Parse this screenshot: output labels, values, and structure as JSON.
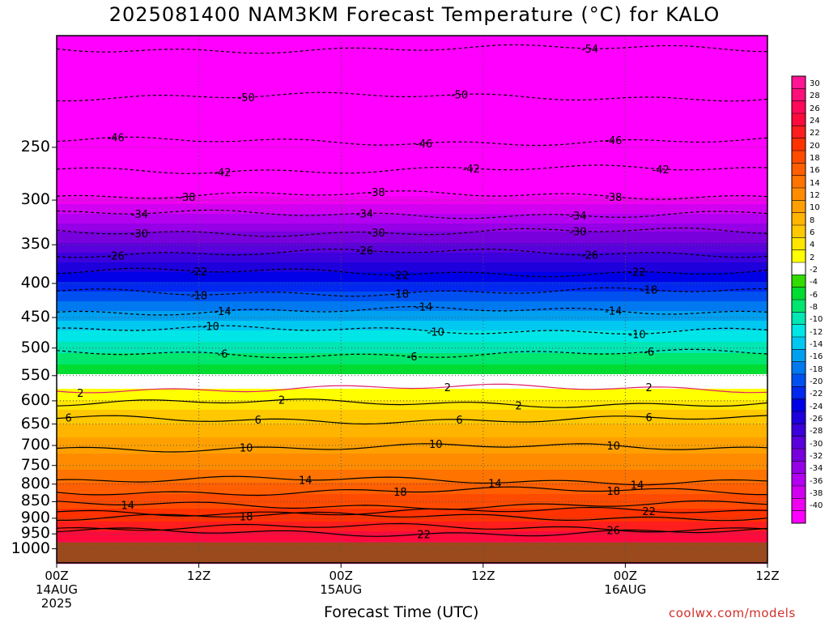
{
  "chart_data": {
    "type": "heatmap",
    "title": "2025081400 NAM3KM Forecast Temperature (°C) for KALO",
    "xlabel": "Forecast Time (UTC)",
    "ylabel": "",
    "x_range_hours": [
      0,
      60
    ],
    "y_scale": "log-pressure",
    "y_range_hpa": [
      1050,
      170
    ],
    "y_ticks": [
      250,
      300,
      350,
      400,
      450,
      500,
      550,
      600,
      650,
      700,
      750,
      800,
      850,
      900,
      950,
      1000
    ],
    "x_ticks": [
      {
        "hour": 0,
        "lines": [
          "00Z",
          "14AUG",
          "2025"
        ]
      },
      {
        "hour": 12,
        "lines": [
          "12Z"
        ]
      },
      {
        "hour": 24,
        "lines": [
          "00Z",
          "15AUG"
        ]
      },
      {
        "hour": 36,
        "lines": [
          "12Z"
        ]
      },
      {
        "hour": 48,
        "lines": [
          "00Z",
          "16AUG"
        ]
      },
      {
        "hour": 60,
        "lines": [
          "12Z"
        ]
      }
    ],
    "grid": true,
    "surface_pressure_hpa": 978,
    "temperature_profile": [
      {
        "p": 178,
        "t": -54
      },
      {
        "p": 210,
        "t": -50
      },
      {
        "p": 245,
        "t": -46
      },
      {
        "p": 270,
        "t": -42
      },
      {
        "p": 295,
        "t": -38
      },
      {
        "p": 315,
        "t": -34
      },
      {
        "p": 335,
        "t": -30
      },
      {
        "p": 360,
        "t": -26
      },
      {
        "p": 385,
        "t": -22
      },
      {
        "p": 412,
        "t": -18
      },
      {
        "p": 440,
        "t": -14
      },
      {
        "p": 470,
        "t": -10
      },
      {
        "p": 510,
        "t": -6
      },
      {
        "p": 548,
        "t": -2
      },
      {
        "p": 575,
        "t": 2
      },
      {
        "p": 620,
        "t": 6
      },
      {
        "p": 680,
        "t": 10
      },
      {
        "p": 760,
        "t": 14
      },
      {
        "p": 830,
        "t": 18
      },
      {
        "p": 910,
        "t": 22
      },
      {
        "p": 975,
        "t": 26
      }
    ],
    "contours": [
      {
        "level": -54,
        "p": 178,
        "label_hours": [
          45
        ]
      },
      {
        "level": -50,
        "p": 210,
        "label_hours": [
          16,
          34
        ]
      },
      {
        "level": -46,
        "p": 245,
        "label_hours": [
          5,
          31,
          47
        ]
      },
      {
        "level": -42,
        "p": 270,
        "label_hours": [
          14,
          35,
          51
        ]
      },
      {
        "level": -38,
        "p": 295,
        "label_hours": [
          11,
          27,
          47
        ]
      },
      {
        "level": -34,
        "p": 315,
        "label_hours": [
          7,
          26,
          44
        ]
      },
      {
        "level": -30,
        "p": 335,
        "label_hours": [
          7,
          27,
          44
        ]
      },
      {
        "level": -26,
        "p": 360,
        "label_hours": [
          5,
          26,
          45
        ]
      },
      {
        "level": -22,
        "p": 385,
        "label_hours": [
          12,
          29,
          49
        ]
      },
      {
        "level": -18,
        "p": 412,
        "label_hours": [
          12,
          29,
          50
        ]
      },
      {
        "level": -14,
        "p": 440,
        "label_hours": [
          14,
          31,
          47
        ]
      },
      {
        "level": -10,
        "p": 470,
        "label_hours": [
          13,
          32,
          49
        ]
      },
      {
        "level": -6,
        "p": 510,
        "label_hours": [
          14,
          30,
          50
        ]
      },
      {
        "level": 2,
        "p": 575,
        "label_hours": [
          2,
          33,
          50
        ]
      },
      {
        "level": 2,
        "p": 605,
        "label_hours": [
          19,
          39
        ]
      },
      {
        "level": 6,
        "p": 640,
        "label_hours": [
          1,
          17,
          34,
          50
        ]
      },
      {
        "level": 10,
        "p": 705,
        "label_hours": [
          16,
          32,
          47
        ]
      },
      {
        "level": 14,
        "p": 790,
        "label_hours": [
          21,
          37,
          49
        ]
      },
      {
        "level": 14,
        "p": 860,
        "label_hours": [
          6
        ]
      },
      {
        "level": 18,
        "p": 820,
        "label_hours": [
          29,
          47
        ]
      },
      {
        "level": 18,
        "p": 895,
        "label_hours": [
          16
        ]
      },
      {
        "level": 22,
        "p": 945,
        "label_hours": [
          31
        ]
      },
      {
        "level": 22,
        "p": 880,
        "label_hours": [
          50
        ]
      },
      {
        "level": 26,
        "p": 930,
        "label_hours": [
          47
        ]
      }
    ],
    "colorbar": {
      "labels": [
        "30",
        "28",
        "26",
        "24",
        "22",
        "20",
        "18",
        "16",
        "14",
        "12",
        "10",
        "8",
        "6",
        "4",
        "2",
        "-2",
        "-4",
        "-6",
        "-8",
        "-10",
        "-12",
        "-14",
        "-16",
        "-18",
        "-20",
        "-22",
        "-24",
        "-26",
        "-28",
        "-30",
        "-32",
        "-34",
        "-36",
        "-38",
        "-40"
      ],
      "colors": [
        "#ff1493",
        "#ff0f7a",
        "#ff0a5a",
        "#ff0a3c",
        "#ff1e1e",
        "#ff3200",
        "#ff4b00",
        "#ff5f00",
        "#ff7300",
        "#ff8c00",
        "#ffa000",
        "#ffb400",
        "#ffc800",
        "#ffe600",
        "#ffff00",
        "#ffffff",
        "#32dc00",
        "#00dc32",
        "#00e66e",
        "#00e6b4",
        "#00e6e6",
        "#00c8f0",
        "#00a0f0",
        "#0078f0",
        "#0050f0",
        "#0028f0",
        "#0000e6",
        "#1e00dc",
        "#3c00dc",
        "#5a00dc",
        "#7800dc",
        "#9600e6",
        "#b400f0",
        "#d200f0",
        "#f000f0",
        "#ff00ff"
      ]
    }
  },
  "credit": "coolwx.com/models"
}
